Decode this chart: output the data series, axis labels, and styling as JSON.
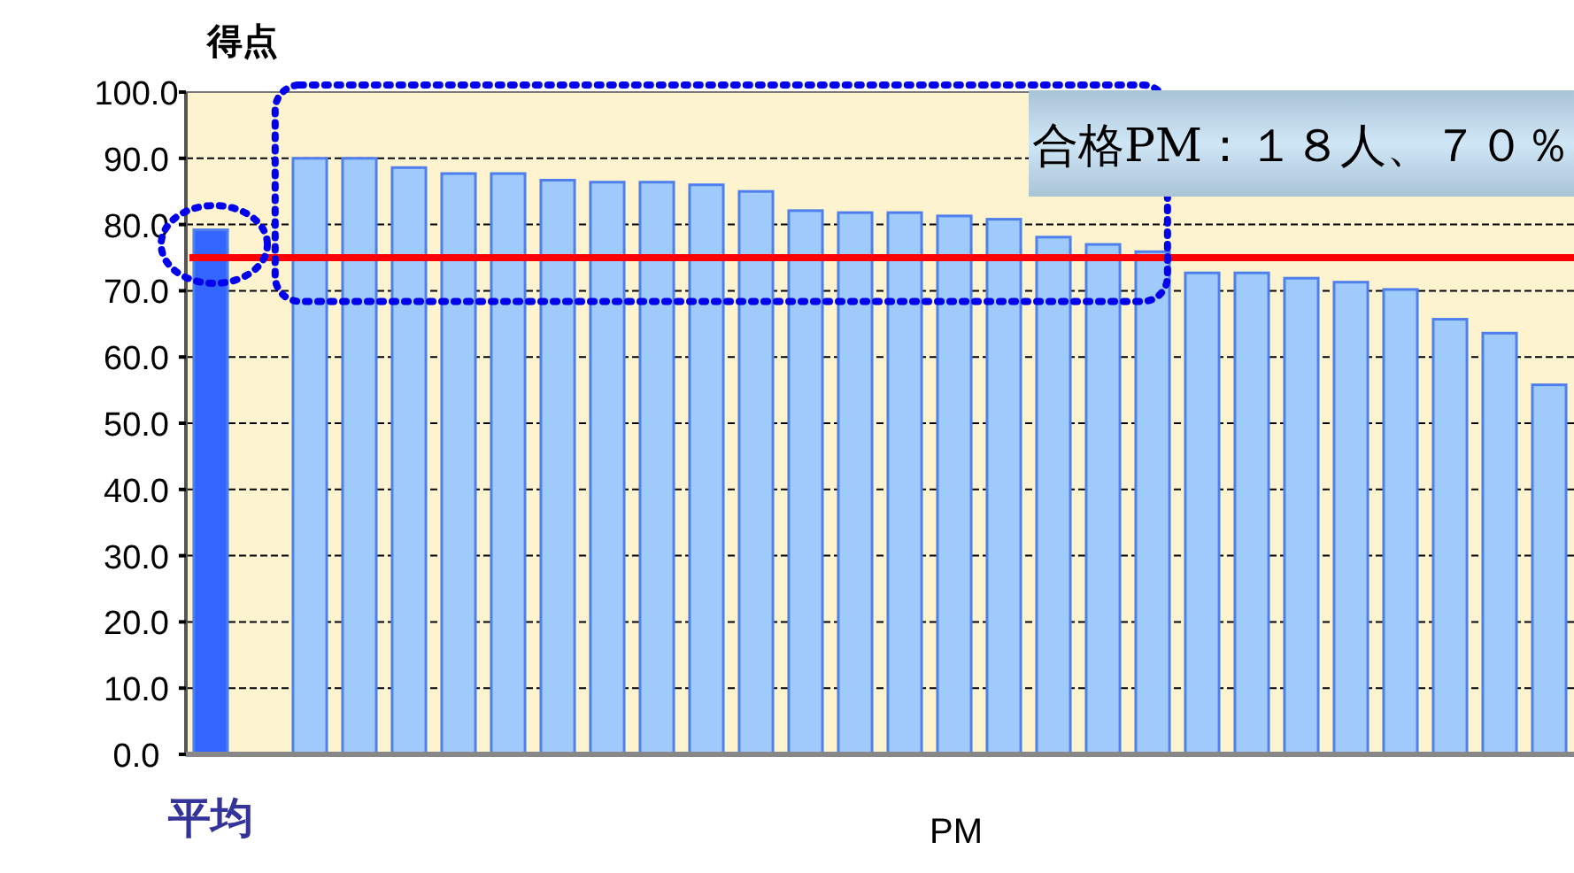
{
  "chart_data": {
    "type": "bar",
    "ylabel": "得点",
    "xlabel": "PM",
    "categories": [
      "平均",
      null,
      null,
      null,
      null,
      null,
      null,
      null,
      null,
      null,
      null,
      null,
      null,
      null,
      null,
      null,
      null,
      null,
      null,
      null,
      null,
      null,
      null,
      null,
      null,
      null,
      null,
      null
    ],
    "values": [
      79.2,
      null,
      90.0,
      90.0,
      88.6,
      87.7,
      87.7,
      86.7,
      86.4,
      86.4,
      86.0,
      85.0,
      82.1,
      81.8,
      81.8,
      81.3,
      80.8,
      78.1,
      77.0,
      75.9,
      72.7,
      72.7,
      71.9,
      71.3,
      70.2,
      65.7,
      63.6,
      55.8
    ],
    "colors": [
      "#3366ff",
      null,
      "#9ecbfa",
      "#9ecbfa",
      "#9ecbfa",
      "#9ecbfa",
      "#9ecbfa",
      "#9ecbfa",
      "#9ecbfa",
      "#9ecbfa",
      "#9ecbfa",
      "#9ecbfa",
      "#9ecbfa",
      "#9ecbfa",
      "#9ecbfa",
      "#9ecbfa",
      "#9ecbfa",
      "#9ecbfa",
      "#9ecbfa",
      "#9ecbfa",
      "#9ecbfa",
      "#9ecbfa",
      "#9ecbfa",
      "#9ecbfa",
      "#9ecbfa",
      "#9ecbfa",
      "#9ecbfa",
      "#9ecbfa"
    ],
    "ylim": [
      0,
      100
    ],
    "yticks": [
      {
        "value": 0,
        "label": "0.0"
      },
      {
        "value": 10,
        "label": "10.0"
      },
      {
        "value": 20,
        "label": "20.0"
      },
      {
        "value": 30,
        "label": "30.0"
      },
      {
        "value": 40,
        "label": "40.0"
      },
      {
        "value": 50,
        "label": "50.0"
      },
      {
        "value": 60,
        "label": "60.0"
      },
      {
        "value": 70,
        "label": "70.0"
      },
      {
        "value": 80,
        "label": "80.0"
      },
      {
        "value": 90,
        "label": "90.0"
      },
      {
        "value": 100,
        "label": "100.0"
      }
    ],
    "grid": "y",
    "ref_lines": [
      {
        "axis": "y",
        "value": 75,
        "color": "#ff0000"
      }
    ],
    "annotations": [
      "合格PM：１８人、７０％"
    ]
  }
}
